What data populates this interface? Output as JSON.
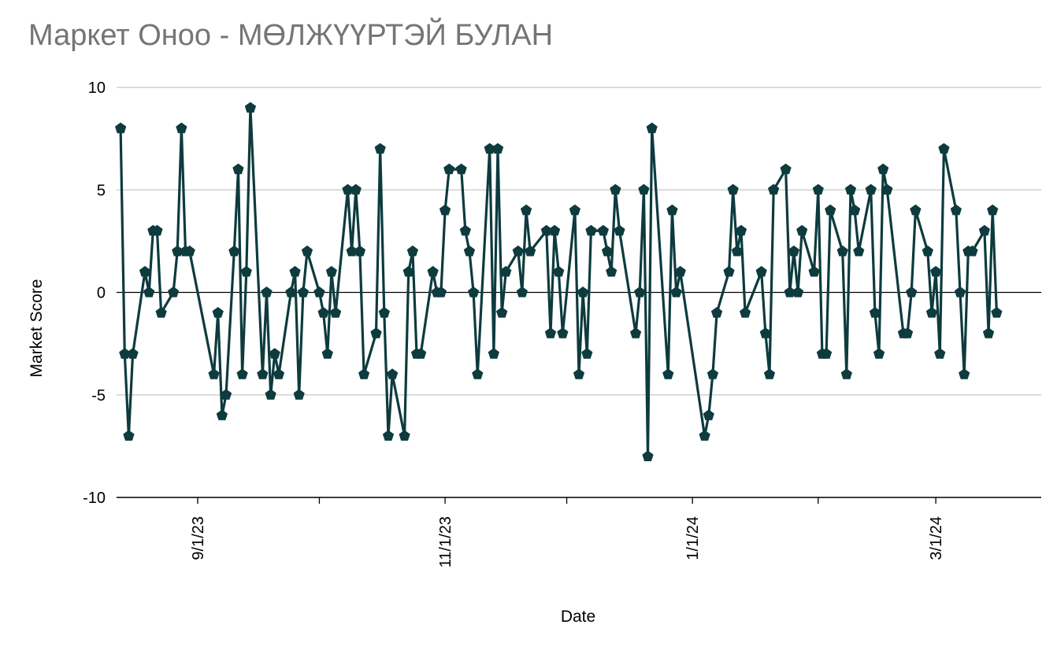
{
  "chart_data": {
    "type": "line",
    "title": "Маркет Оноо - МӨЛЖҮҮРТЭЙ БУЛАН",
    "xlabel": "Date",
    "ylabel": "Market Score",
    "ylim": [
      -10,
      10
    ],
    "y_ticks": [
      "10",
      "5",
      "0",
      "-5",
      "-10"
    ],
    "x_range": [
      "2023-08-12",
      "2024-03-27"
    ],
    "x_ticks": [
      {
        "date": "2023-09-01",
        "label": "9/1/23"
      },
      {
        "date": "2023-11-01",
        "label": "11/1/23"
      },
      {
        "date": "2024-01-01",
        "label": "1/1/24"
      },
      {
        "date": "2024-03-01",
        "label": "3/1/24"
      }
    ],
    "grid": true,
    "legend": "none",
    "series_color": "#0d3b3e",
    "series": [
      {
        "marker": "pentagon",
        "points": [
          [
            "2023-08-13",
            8
          ],
          [
            "2023-08-14",
            -3
          ],
          [
            "2023-08-15",
            -7
          ],
          [
            "2023-08-16",
            -3
          ],
          [
            "2023-08-19",
            1
          ],
          [
            "2023-08-20",
            0
          ],
          [
            "2023-08-21",
            3
          ],
          [
            "2023-08-22",
            3
          ],
          [
            "2023-08-23",
            -1
          ],
          [
            "2023-08-26",
            0
          ],
          [
            "2023-08-27",
            2
          ],
          [
            "2023-08-28",
            8
          ],
          [
            "2023-08-29",
            2
          ],
          [
            "2023-08-30",
            2
          ],
          [
            "2023-09-05",
            -4
          ],
          [
            "2023-09-06",
            -1
          ],
          [
            "2023-09-07",
            -6
          ],
          [
            "2023-09-08",
            -5
          ],
          [
            "2023-09-10",
            2
          ],
          [
            "2023-09-11",
            6
          ],
          [
            "2023-09-12",
            -4
          ],
          [
            "2023-09-13",
            1
          ],
          [
            "2023-09-14",
            9
          ],
          [
            "2023-09-17",
            -4
          ],
          [
            "2023-09-18",
            0
          ],
          [
            "2023-09-19",
            -5
          ],
          [
            "2023-09-20",
            -3
          ],
          [
            "2023-09-21",
            -4
          ],
          [
            "2023-09-24",
            0
          ],
          [
            "2023-09-25",
            1
          ],
          [
            "2023-09-26",
            -5
          ],
          [
            "2023-09-27",
            0
          ],
          [
            "2023-09-28",
            2
          ],
          [
            "2023-10-01",
            0
          ],
          [
            "2023-10-02",
            -1
          ],
          [
            "2023-10-03",
            -3
          ],
          [
            "2023-10-04",
            1
          ],
          [
            "2023-10-05",
            -1
          ],
          [
            "2023-10-08",
            5
          ],
          [
            "2023-10-09",
            2
          ],
          [
            "2023-10-10",
            5
          ],
          [
            "2023-10-11",
            2
          ],
          [
            "2023-10-12",
            -4
          ],
          [
            "2023-10-15",
            -2
          ],
          [
            "2023-10-16",
            7
          ],
          [
            "2023-10-17",
            -1
          ],
          [
            "2023-10-18",
            -7
          ],
          [
            "2023-10-19",
            -4
          ],
          [
            "2023-10-22",
            -7
          ],
          [
            "2023-10-23",
            1
          ],
          [
            "2023-10-24",
            2
          ],
          [
            "2023-10-25",
            -3
          ],
          [
            "2023-10-26",
            -3
          ],
          [
            "2023-10-29",
            1
          ],
          [
            "2023-10-30",
            0
          ],
          [
            "2023-10-31",
            0
          ],
          [
            "2023-11-01",
            4
          ],
          [
            "2023-11-02",
            6
          ],
          [
            "2023-11-05",
            6
          ],
          [
            "2023-11-06",
            3
          ],
          [
            "2023-11-07",
            2
          ],
          [
            "2023-11-08",
            0
          ],
          [
            "2023-11-09",
            -4
          ],
          [
            "2023-11-12",
            7
          ],
          [
            "2023-11-13",
            -3
          ],
          [
            "2023-11-14",
            7
          ],
          [
            "2023-11-15",
            -1
          ],
          [
            "2023-11-16",
            1
          ],
          [
            "2023-11-19",
            2
          ],
          [
            "2023-11-20",
            0
          ],
          [
            "2023-11-21",
            4
          ],
          [
            "2023-11-22",
            2
          ],
          [
            "2023-11-26",
            3
          ],
          [
            "2023-11-27",
            -2
          ],
          [
            "2023-11-28",
            3
          ],
          [
            "2023-11-29",
            1
          ],
          [
            "2023-11-30",
            -2
          ],
          [
            "2023-12-03",
            4
          ],
          [
            "2023-12-04",
            -4
          ],
          [
            "2023-12-05",
            0
          ],
          [
            "2023-12-06",
            -3
          ],
          [
            "2023-12-07",
            3
          ],
          [
            "2023-12-10",
            3
          ],
          [
            "2023-12-11",
            2
          ],
          [
            "2023-12-12",
            1
          ],
          [
            "2023-12-13",
            5
          ],
          [
            "2023-12-14",
            3
          ],
          [
            "2023-12-18",
            -2
          ],
          [
            "2023-12-19",
            0
          ],
          [
            "2023-12-20",
            5
          ],
          [
            "2023-12-21",
            -8
          ],
          [
            "2023-12-22",
            8
          ],
          [
            "2023-12-26",
            -4
          ],
          [
            "2023-12-27",
            4
          ],
          [
            "2023-12-28",
            0
          ],
          [
            "2023-12-29",
            1
          ],
          [
            "2024-01-04",
            -7
          ],
          [
            "2024-01-05",
            -6
          ],
          [
            "2024-01-06",
            -4
          ],
          [
            "2024-01-07",
            -1
          ],
          [
            "2024-01-10",
            1
          ],
          [
            "2024-01-11",
            5
          ],
          [
            "2024-01-12",
            2
          ],
          [
            "2024-01-13",
            3
          ],
          [
            "2024-01-14",
            -1
          ],
          [
            "2024-01-18",
            1
          ],
          [
            "2024-01-19",
            -2
          ],
          [
            "2024-01-20",
            -4
          ],
          [
            "2024-01-21",
            5
          ],
          [
            "2024-01-24",
            6
          ],
          [
            "2024-01-25",
            0
          ],
          [
            "2024-01-26",
            2
          ],
          [
            "2024-01-27",
            0
          ],
          [
            "2024-01-28",
            3
          ],
          [
            "2024-01-31",
            1
          ],
          [
            "2024-02-01",
            5
          ],
          [
            "2024-02-02",
            -3
          ],
          [
            "2024-02-03",
            -3
          ],
          [
            "2024-02-04",
            4
          ],
          [
            "2024-02-07",
            2
          ],
          [
            "2024-02-08",
            -4
          ],
          [
            "2024-02-09",
            5
          ],
          [
            "2024-02-10",
            4
          ],
          [
            "2024-02-11",
            2
          ],
          [
            "2024-02-14",
            5
          ],
          [
            "2024-02-15",
            -1
          ],
          [
            "2024-02-16",
            -3
          ],
          [
            "2024-02-17",
            6
          ],
          [
            "2024-02-18",
            5
          ],
          [
            "2024-02-22",
            -2
          ],
          [
            "2024-02-23",
            -2
          ],
          [
            "2024-02-24",
            0
          ],
          [
            "2024-02-25",
            4
          ],
          [
            "2024-02-28",
            2
          ],
          [
            "2024-02-29",
            -1
          ],
          [
            "2024-03-01",
            1
          ],
          [
            "2024-03-02",
            -3
          ],
          [
            "2024-03-03",
            7
          ],
          [
            "2024-03-06",
            4
          ],
          [
            "2024-03-07",
            0
          ],
          [
            "2024-03-08",
            -4
          ],
          [
            "2024-03-09",
            2
          ],
          [
            "2024-03-10",
            2
          ],
          [
            "2024-03-13",
            3
          ],
          [
            "2024-03-14",
            -2
          ],
          [
            "2024-03-15",
            4
          ],
          [
            "2024-03-16",
            -1
          ]
        ]
      }
    ]
  }
}
